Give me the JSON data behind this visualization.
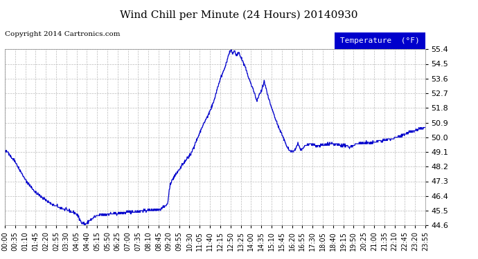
{
  "title": "Wind Chill per Minute (24 Hours) 20140930",
  "copyright": "Copyright 2014 Cartronics.com",
  "legend_label": "Temperature  (°F)",
  "line_color": "#0000cc",
  "background_color": "#ffffff",
  "grid_color": "#bbbbbb",
  "ylim": [
    44.6,
    55.4
  ],
  "yticks": [
    44.6,
    45.5,
    46.4,
    47.3,
    48.2,
    49.1,
    50.0,
    50.9,
    51.8,
    52.7,
    53.6,
    54.5,
    55.4
  ],
  "xtick_labels": [
    "00:00",
    "00:35",
    "01:10",
    "01:45",
    "02:20",
    "02:55",
    "03:30",
    "04:05",
    "04:40",
    "05:15",
    "05:50",
    "06:25",
    "07:00",
    "07:35",
    "08:10",
    "08:45",
    "09:20",
    "09:55",
    "10:30",
    "11:05",
    "11:40",
    "12:15",
    "12:50",
    "13:25",
    "14:00",
    "14:35",
    "15:10",
    "15:45",
    "16:20",
    "16:55",
    "17:30",
    "18:05",
    "18:40",
    "19:15",
    "19:50",
    "20:25",
    "21:00",
    "21:35",
    "22:10",
    "22:45",
    "23:20",
    "23:55"
  ]
}
